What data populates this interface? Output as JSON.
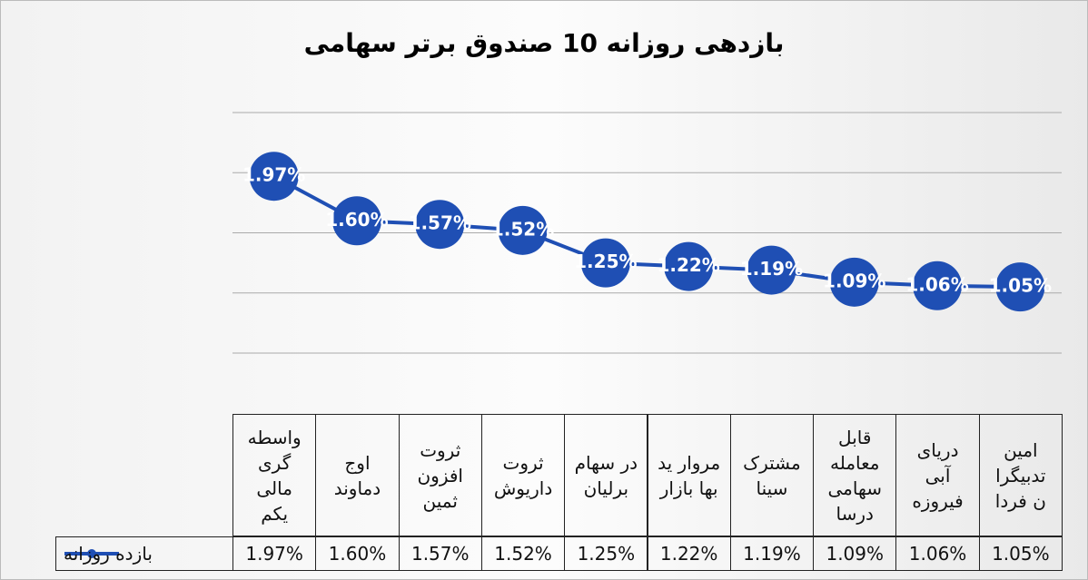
{
  "chart_data": {
    "type": "line",
    "title": "بازدهی روزانه 10 صندوق برتر سهامی",
    "categories": [
      "واسطه گری مالی یکم",
      "اوج دماوند",
      "ثروت افزون ثمین",
      "ثروت داریوش",
      "در سهام برلیان",
      "مروار ید بها بازار",
      "مشترک سینا",
      "قابل معامله سهامی درسا",
      "دریای آبی فیروزه",
      "امین تدبیگرا ن فردا"
    ],
    "series": [
      {
        "name": "بازده روزانه",
        "color": "#1f4fb4",
        "values": [
          1.97,
          1.6,
          1.57,
          1.52,
          1.25,
          1.22,
          1.19,
          1.09,
          1.06,
          1.05
        ],
        "value_labels": [
          "1.97%",
          "1.60%",
          "1.57%",
          "1.52%",
          "1.25%",
          "1.22%",
          "1.19%",
          "1.09%",
          "1.06%",
          "1.05%"
        ]
      }
    ],
    "ylim": [
      0.5,
      2.5
    ],
    "yticks": [
      0.5,
      1,
      1.5,
      2,
      2.5
    ],
    "grid": true
  }
}
